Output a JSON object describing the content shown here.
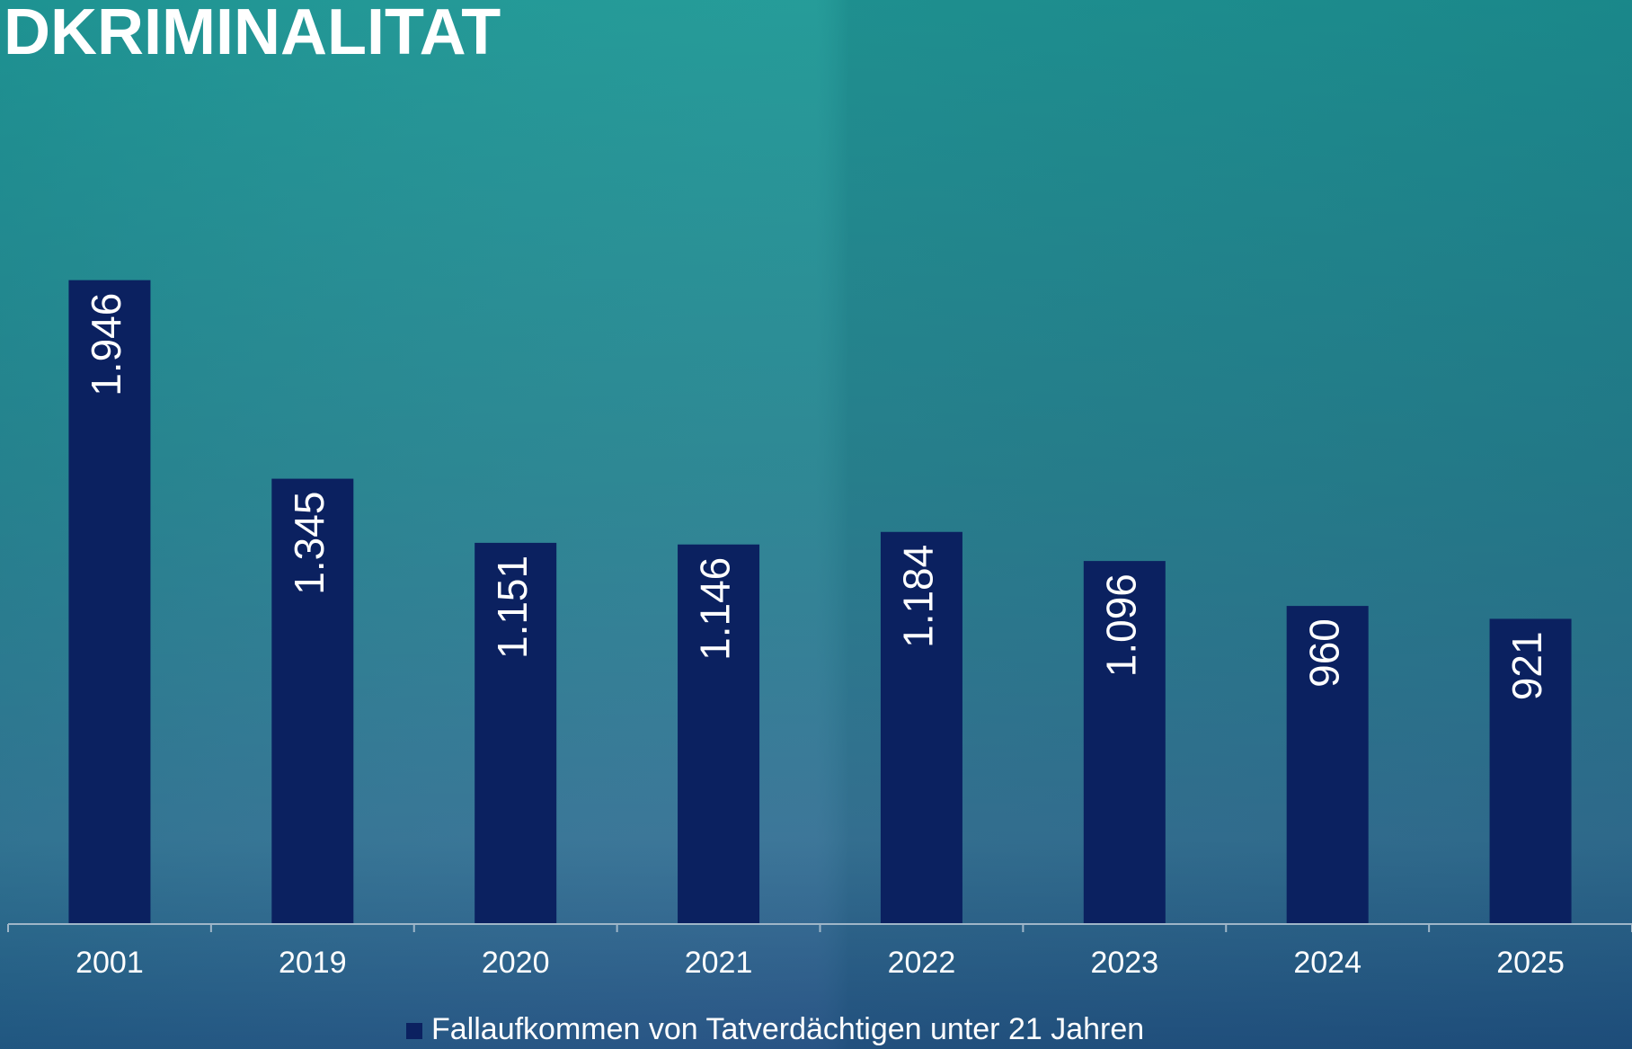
{
  "chart_data": {
    "type": "bar",
    "title": "DKRIMINALITAT",
    "categories": [
      "2001",
      "2019",
      "2020",
      "2021",
      "2022",
      "2023",
      "2024",
      "2025"
    ],
    "series": [
      {
        "name": "Fallaufkommen von Tatverdächtigen unter 21 Jahren",
        "color": "#0b2160",
        "values": [
          1946,
          1345,
          1151,
          1146,
          1184,
          1096,
          960,
          921
        ],
        "value_labels": [
          "1.946",
          "1.345",
          "1.151",
          "1.146",
          "1.184",
          "1.096",
          "960",
          "921"
        ]
      }
    ],
    "ylim": [
      0,
      2500
    ],
    "legend": "bottom"
  }
}
